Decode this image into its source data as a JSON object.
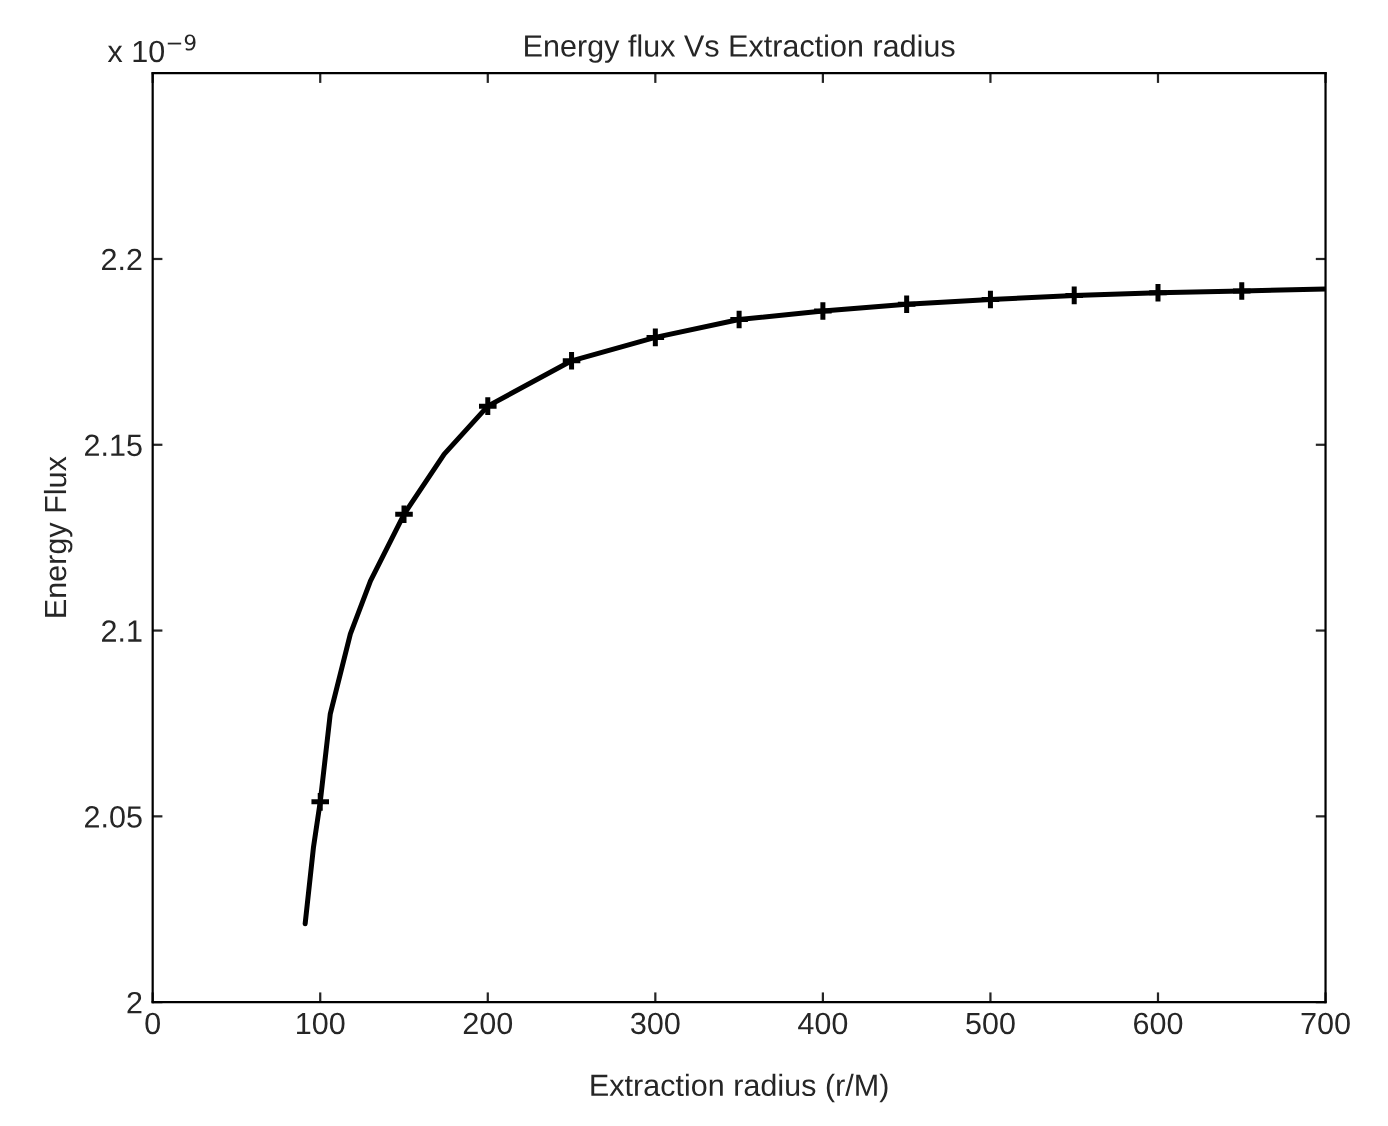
{
  "chart_data": {
    "type": "line",
    "title": "Energy flux Vs Extraction radius",
    "xlabel": "Extraction radius (r/M)",
    "ylabel": "Energy Flux",
    "annotations": [
      "x 10$^{−9}$"
    ],
    "series": [
      {
        "color": "#000000",
        "marker": "none",
        "x": [
          91,
          96,
          100,
          106,
          118,
          130,
          150,
          174,
          200,
          250,
          300,
          350,
          400,
          450,
          500,
          550,
          600,
          650,
          700
        ],
        "values": [
          2.0211,
          2.0418,
          2.0539,
          2.0776,
          2.0991,
          2.1134,
          2.1313,
          2.1475,
          2.1604,
          2.1726,
          2.1789,
          2.1837,
          2.186,
          2.1878,
          2.1891,
          2.1902,
          2.1909,
          2.1914,
          2.1919
        ]
      },
      {
        "type": "scatter",
        "color": "#000000",
        "marker": "cross",
        "x": [
          100,
          150,
          200,
          250,
          300,
          350,
          400,
          450,
          500,
          550,
          600,
          650
        ],
        "values": [
          2.0539,
          2.1313,
          2.1604,
          2.1726,
          2.1789,
          2.1837,
          2.186,
          2.1878,
          2.1891,
          2.1902,
          2.1909,
          2.1914
        ]
      }
    ],
    "xlim": [
      0,
      700
    ],
    "xticks": [
      0,
      100,
      200,
      300,
      400,
      500,
      600,
      700
    ],
    "ylim": [
      2,
      2.25
    ],
    "yticks": [
      2,
      2.05,
      2.1,
      2.15,
      2.2
    ],
    "grid": false
  }
}
